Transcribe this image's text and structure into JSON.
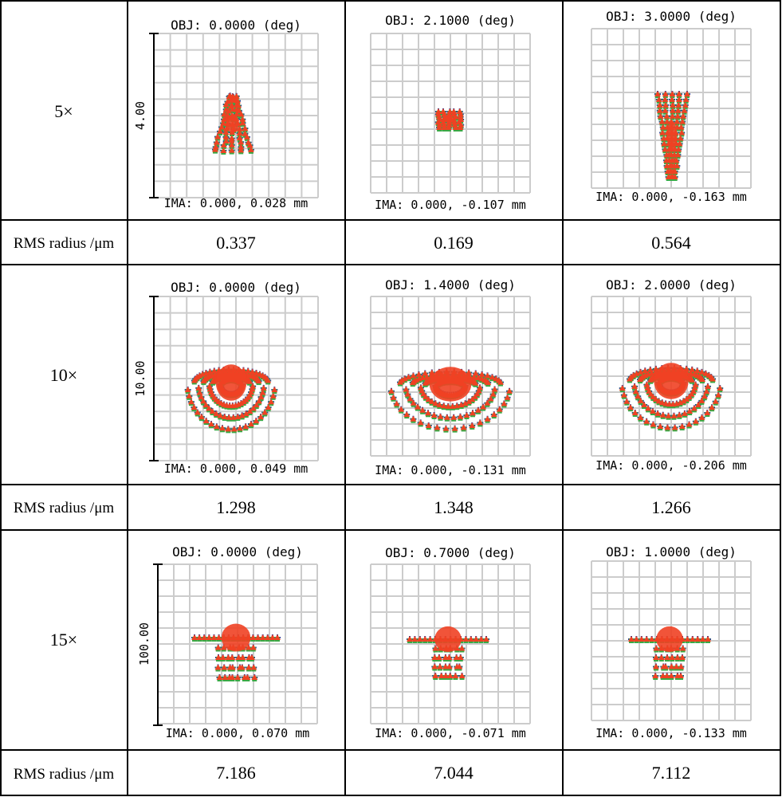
{
  "colors": {
    "grid": "#cccccc",
    "blue_marker": "#2b3990",
    "green_marker": "#3aa845",
    "red_marker": "#ef4123",
    "border": "#000000"
  },
  "rows": [
    {
      "magnification": "5×",
      "rms_label": "RMS radius /μm",
      "scale_label": "4.00",
      "plots": [
        {
          "obj": "OBJ: 0.0000 (deg)",
          "ima": "IMA: 0.000, 0.028 mm",
          "rms": "0.337"
        },
        {
          "obj": "OBJ: 2.1000 (deg)",
          "ima": "IMA: 0.000, -0.107 mm",
          "rms": "0.169"
        },
        {
          "obj": "OBJ: 3.0000 (deg)",
          "ima": "IMA: 0.000, -0.163 mm",
          "rms": "0.564"
        }
      ]
    },
    {
      "magnification": "10×",
      "rms_label": "RMS radius /μm",
      "scale_label": "10.00",
      "plots": [
        {
          "obj": "OBJ: 0.0000 (deg)",
          "ima": "IMA: 0.000, 0.049 mm",
          "rms": "1.298"
        },
        {
          "obj": "OBJ: 1.4000 (deg)",
          "ima": "IMA: 0.000, -0.131 mm",
          "rms": "1.348"
        },
        {
          "obj": "OBJ: 2.0000 (deg)",
          "ima": "IMA: 0.000, -0.206 mm",
          "rms": "1.266"
        }
      ]
    },
    {
      "magnification": "15×",
      "rms_label": "RMS radius /μm",
      "scale_label": "100.00",
      "plots": [
        {
          "obj": "OBJ: 0.0000 (deg)",
          "ima": "IMA: 0.000, 0.070 mm",
          "rms": "7.186"
        },
        {
          "obj": "OBJ: 0.7000 (deg)",
          "ima": "IMA: 0.000, -0.071 mm",
          "rms": "7.044"
        },
        {
          "obj": "OBJ: 1.0000 (deg)",
          "ima": "IMA: 0.000, -0.133 mm",
          "rms": "7.112"
        }
      ]
    }
  ]
}
